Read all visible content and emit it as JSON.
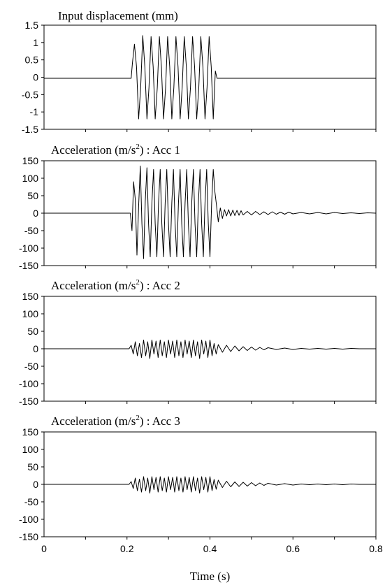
{
  "chart_data": [
    {
      "type": "line",
      "title": "Input displacement (mm)",
      "ylim": [
        -1.5,
        1.5
      ],
      "yticks": [
        "1.5",
        "1",
        "0.5",
        "0",
        "-0.5",
        "-1",
        "-1.5"
      ],
      "xlim": [
        0,
        0.8
      ],
      "grid": false,
      "series": [
        {
          "x": [
            0,
            0.21,
            0.213,
            0.218,
            0.223,
            0.228,
            0.233,
            0.238,
            0.243,
            0.248,
            0.253,
            0.258,
            0.263,
            0.268,
            0.273,
            0.278,
            0.283,
            0.288,
            0.293,
            0.298,
            0.303,
            0.308,
            0.313,
            0.318,
            0.323,
            0.328,
            0.333,
            0.338,
            0.343,
            0.348,
            0.353,
            0.358,
            0.363,
            0.368,
            0.373,
            0.378,
            0.383,
            0.388,
            0.393,
            0.398,
            0.403,
            0.408,
            0.413,
            0.417,
            0.8
          ],
          "y": [
            -0.03,
            -0.03,
            0.4,
            0.95,
            0.3,
            -1.2,
            -0.3,
            1.2,
            0.3,
            -1.2,
            -0.3,
            1.17,
            0.3,
            -1.2,
            -0.3,
            1.17,
            0.3,
            -1.2,
            -0.3,
            1.17,
            0.3,
            -1.2,
            -0.3,
            1.17,
            0.3,
            -1.2,
            -0.3,
            1.17,
            0.3,
            -1.2,
            -0.3,
            1.17,
            0.3,
            -1.2,
            -0.3,
            1.17,
            0.3,
            -1.2,
            -0.3,
            1.17,
            0.3,
            -1.2,
            0.18,
            -0.03,
            -0.03
          ]
        }
      ]
    },
    {
      "type": "line",
      "title": "Acceleration (m/s²) : Acc 1",
      "title_text": "Acceleration (m/s",
      "title_sup": "2",
      "title_suffix": ") :  Acc 1",
      "ylim": [
        -150,
        150
      ],
      "yticks": [
        "150",
        "100",
        "50",
        "0",
        "-50",
        "-100",
        "-150"
      ],
      "xlim": [
        0,
        0.8
      ],
      "grid": false,
      "series": [
        {
          "x": [
            0,
            0.208,
            0.212,
            0.216,
            0.22,
            0.224,
            0.228,
            0.232,
            0.236,
            0.24,
            0.244,
            0.248,
            0.252,
            0.256,
            0.26,
            0.264,
            0.268,
            0.272,
            0.276,
            0.28,
            0.284,
            0.288,
            0.292,
            0.296,
            0.3,
            0.304,
            0.308,
            0.312,
            0.316,
            0.32,
            0.324,
            0.328,
            0.332,
            0.336,
            0.34,
            0.344,
            0.348,
            0.352,
            0.356,
            0.36,
            0.364,
            0.368,
            0.372,
            0.376,
            0.38,
            0.384,
            0.388,
            0.392,
            0.396,
            0.4,
            0.404,
            0.408,
            0.412,
            0.416,
            0.42,
            0.425,
            0.43,
            0.435,
            0.44,
            0.445,
            0.45,
            0.455,
            0.46,
            0.465,
            0.47,
            0.475,
            0.48,
            0.49,
            0.5,
            0.51,
            0.52,
            0.53,
            0.54,
            0.55,
            0.56,
            0.57,
            0.58,
            0.59,
            0.6,
            0.62,
            0.64,
            0.66,
            0.68,
            0.7,
            0.72,
            0.74,
            0.76,
            0.78,
            0.8
          ],
          "y": [
            0,
            0,
            -50,
            90,
            40,
            -120,
            20,
            135,
            -30,
            -130,
            35,
            130,
            -30,
            -125,
            30,
            125,
            -30,
            -125,
            30,
            125,
            -30,
            -125,
            30,
            125,
            -30,
            -125,
            30,
            125,
            -30,
            -125,
            30,
            125,
            -30,
            -125,
            30,
            125,
            -30,
            -125,
            30,
            125,
            -30,
            -125,
            30,
            125,
            -30,
            -125,
            30,
            125,
            -30,
            -125,
            30,
            125,
            60,
            20,
            -25,
            15,
            -15,
            10,
            -8,
            10,
            -8,
            9,
            -7,
            8,
            -6,
            7,
            -5,
            5,
            -5,
            5,
            -4,
            4,
            -4,
            4,
            -3,
            3,
            -3,
            3,
            -2,
            2,
            -2,
            2,
            -2,
            2,
            -1,
            1,
            -1,
            1,
            0
          ]
        }
      ]
    },
    {
      "type": "line",
      "title": "Acceleration (m/s²) : Acc 2",
      "title_text": "Acceleration (m/s",
      "title_sup": "2",
      "title_suffix": ") :  Acc 2",
      "ylim": [
        -150,
        150
      ],
      "yticks": [
        "150",
        "100",
        "50",
        "0",
        "-50",
        "-100",
        "-150"
      ],
      "xlim": [
        0,
        0.8
      ],
      "grid": false,
      "series": [
        {
          "x": [
            0,
            0.205,
            0.21,
            0.215,
            0.22,
            0.225,
            0.23,
            0.235,
            0.24,
            0.245,
            0.25,
            0.255,
            0.26,
            0.265,
            0.27,
            0.275,
            0.28,
            0.285,
            0.29,
            0.295,
            0.3,
            0.305,
            0.31,
            0.315,
            0.32,
            0.325,
            0.33,
            0.335,
            0.34,
            0.345,
            0.35,
            0.355,
            0.36,
            0.365,
            0.37,
            0.375,
            0.38,
            0.385,
            0.39,
            0.395,
            0.4,
            0.405,
            0.41,
            0.415,
            0.42,
            0.43,
            0.44,
            0.45,
            0.46,
            0.47,
            0.48,
            0.49,
            0.5,
            0.51,
            0.52,
            0.53,
            0.54,
            0.56,
            0.58,
            0.6,
            0.62,
            0.64,
            0.66,
            0.68,
            0.7,
            0.72,
            0.74,
            0.76,
            0.8
          ],
          "y": [
            0,
            0,
            10,
            -15,
            20,
            -20,
            15,
            -25,
            25,
            -20,
            20,
            -28,
            25,
            -15,
            22,
            -25,
            25,
            -20,
            20,
            -25,
            25,
            -15,
            22,
            -25,
            25,
            -20,
            20,
            -25,
            25,
            -15,
            22,
            -25,
            25,
            -20,
            20,
            -28,
            25,
            -15,
            22,
            -25,
            25,
            -20,
            15,
            -15,
            12,
            -10,
            10,
            -8,
            8,
            -6,
            6,
            -5,
            5,
            -4,
            4,
            -3,
            3,
            -2,
            2,
            -2,
            1,
            -1,
            1,
            -1,
            1,
            -1,
            1,
            0,
            0
          ]
        }
      ]
    },
    {
      "type": "line",
      "title": "Acceleration (m/s²) : Acc 3",
      "title_text": "Acceleration (m/s",
      "title_sup": "2",
      "title_suffix": ") :  Acc 3",
      "ylim": [
        -150,
        150
      ],
      "yticks": [
        "150",
        "100",
        "50",
        "0",
        "-50",
        "-100",
        "-150"
      ],
      "xlim": [
        0,
        0.8
      ],
      "xticks": [
        "0",
        "0.2",
        "0.4",
        "0.6",
        "0.8"
      ],
      "xlabel": "Time (s)",
      "grid": false,
      "series": [
        {
          "x": [
            0,
            0.205,
            0.21,
            0.215,
            0.22,
            0.225,
            0.23,
            0.235,
            0.24,
            0.245,
            0.25,
            0.255,
            0.26,
            0.265,
            0.27,
            0.275,
            0.28,
            0.285,
            0.29,
            0.295,
            0.3,
            0.305,
            0.31,
            0.315,
            0.32,
            0.325,
            0.33,
            0.335,
            0.34,
            0.345,
            0.35,
            0.355,
            0.36,
            0.365,
            0.37,
            0.375,
            0.38,
            0.385,
            0.39,
            0.395,
            0.4,
            0.405,
            0.41,
            0.415,
            0.42,
            0.43,
            0.44,
            0.45,
            0.46,
            0.47,
            0.48,
            0.49,
            0.5,
            0.51,
            0.52,
            0.53,
            0.54,
            0.56,
            0.58,
            0.6,
            0.62,
            0.64,
            0.66,
            0.68,
            0.7,
            0.72,
            0.74,
            0.76,
            0.8
          ],
          "y": [
            0,
            0,
            8,
            -12,
            18,
            -18,
            15,
            -22,
            22,
            -18,
            18,
            -25,
            22,
            -15,
            20,
            -22,
            22,
            -18,
            18,
            -22,
            22,
            -15,
            20,
            -22,
            22,
            -18,
            18,
            -22,
            22,
            -15,
            20,
            -22,
            22,
            -18,
            18,
            -25,
            22,
            -15,
            20,
            -22,
            22,
            -18,
            14,
            -14,
            12,
            -9,
            9,
            -7,
            7,
            -6,
            6,
            -5,
            5,
            -4,
            4,
            -3,
            3,
            -2,
            2,
            -2,
            1,
            -1,
            1,
            -1,
            1,
            -1,
            1,
            0,
            0
          ]
        }
      ]
    }
  ]
}
